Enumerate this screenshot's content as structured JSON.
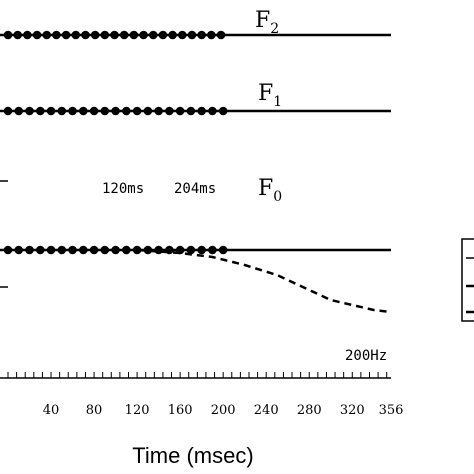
{
  "chart_data": {
    "type": "line",
    "title": "",
    "xlabel": "Time (msec)",
    "ylabel": "",
    "xlim": [
      0,
      356
    ],
    "xticks": [
      "40",
      "80",
      "120",
      "160",
      "200",
      "240",
      "280",
      "320",
      "356"
    ],
    "annotations": [
      "120ms",
      "204ms",
      "200Hz"
    ],
    "series": [
      {
        "id": "F2",
        "label_main": "F",
        "label_sub": "2",
        "x": [
          0,
          356
        ],
        "y": [
          1,
          1
        ],
        "markers_x": [
          0,
          9,
          18,
          27,
          36,
          45,
          54,
          63,
          72,
          81,
          90,
          99,
          108,
          117,
          126,
          135,
          144,
          153,
          162,
          171,
          180,
          189,
          198
        ]
      },
      {
        "id": "F1",
        "label_main": "F",
        "label_sub": "1",
        "x": [
          0,
          356
        ],
        "y": [
          1,
          1
        ],
        "markers_x": [
          0,
          10,
          20,
          30,
          40,
          50,
          60,
          70,
          80,
          90,
          100,
          110,
          120,
          130,
          140,
          150,
          160,
          170,
          180,
          190,
          200
        ]
      },
      {
        "id": "F0",
        "label_main": "F",
        "label_sub": "0",
        "x": [
          0,
          356
        ],
        "y": [
          0,
          0
        ],
        "markers_x": [
          0,
          10,
          20,
          30,
          40,
          50,
          60,
          70,
          80,
          90,
          100,
          110,
          120,
          130,
          140,
          150,
          160,
          170,
          180,
          190,
          200
        ],
        "falling_branch": {
          "x": [
            120,
            160,
            190,
            220,
            250,
            280,
            300,
            320,
            340,
            356
          ],
          "y": [
            0,
            -3,
            -7,
            -15,
            -25,
            -40,
            -50,
            -55,
            -60,
            -62
          ]
        }
      }
    ],
    "legend_placement": "right (clipped)",
    "grid": false
  }
}
